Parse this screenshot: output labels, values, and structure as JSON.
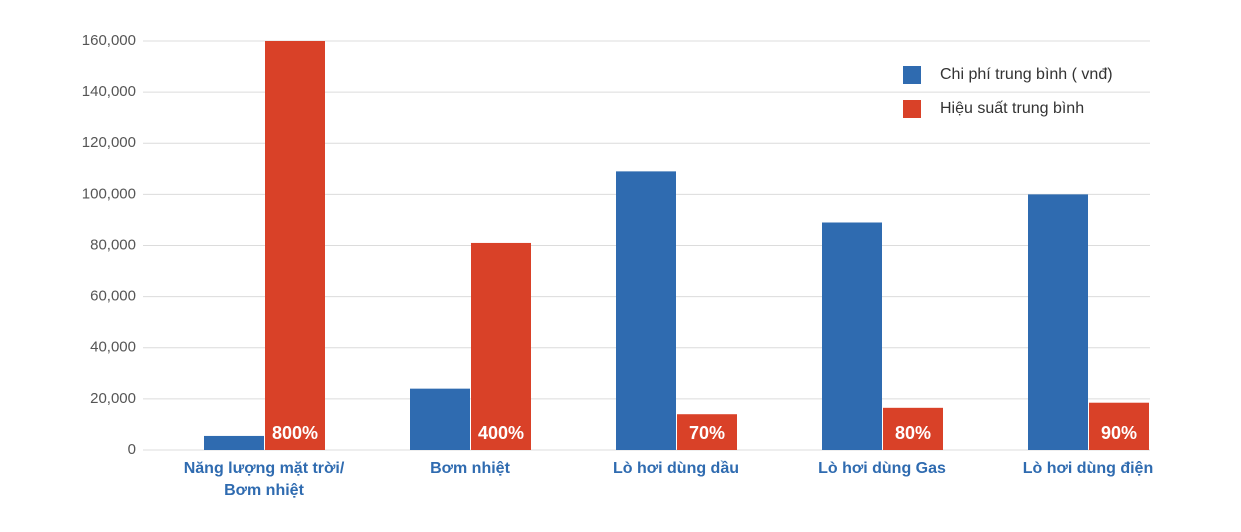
{
  "chart_data": {
    "type": "bar",
    "categories": [
      "Năng lượng mặt trời/ Bơm nhiệt",
      "Bơm nhiệt",
      "Lò hơi dùng dầu",
      "Lò hơi dùng Gas",
      "Lò hơi dùng điện"
    ],
    "series": [
      {
        "name": "Chi phí trung bình ( vnđ)",
        "color": "#2f6bb0",
        "values": [
          5500,
          24000,
          109000,
          89000,
          100000
        ]
      },
      {
        "name": "Hiệu suất trung bình",
        "color": "#d94128",
        "values": [
          160000,
          81000,
          14000,
          16500,
          18500
        ],
        "bar_labels": [
          "800%",
          "400%",
          "70%",
          "80%",
          "90%"
        ]
      }
    ],
    "ylim": [
      0,
      160000
    ],
    "yticks": [
      0,
      {
        "value": 20000,
        "label": "20,000"
      },
      {
        "value": 40000,
        "label": "40,000"
      },
      {
        "value": 60000,
        "label": "60,000"
      },
      {
        "value": 80000,
        "label": "80,000"
      },
      {
        "value": 100000,
        "label": "100,000"
      },
      {
        "value": 120000,
        "label": "120,000"
      },
      {
        "value": 140000,
        "label": "140,000"
      },
      {
        "value": 160000,
        "label": "160,000"
      }
    ],
    "grid": true,
    "legend": "top-right"
  }
}
